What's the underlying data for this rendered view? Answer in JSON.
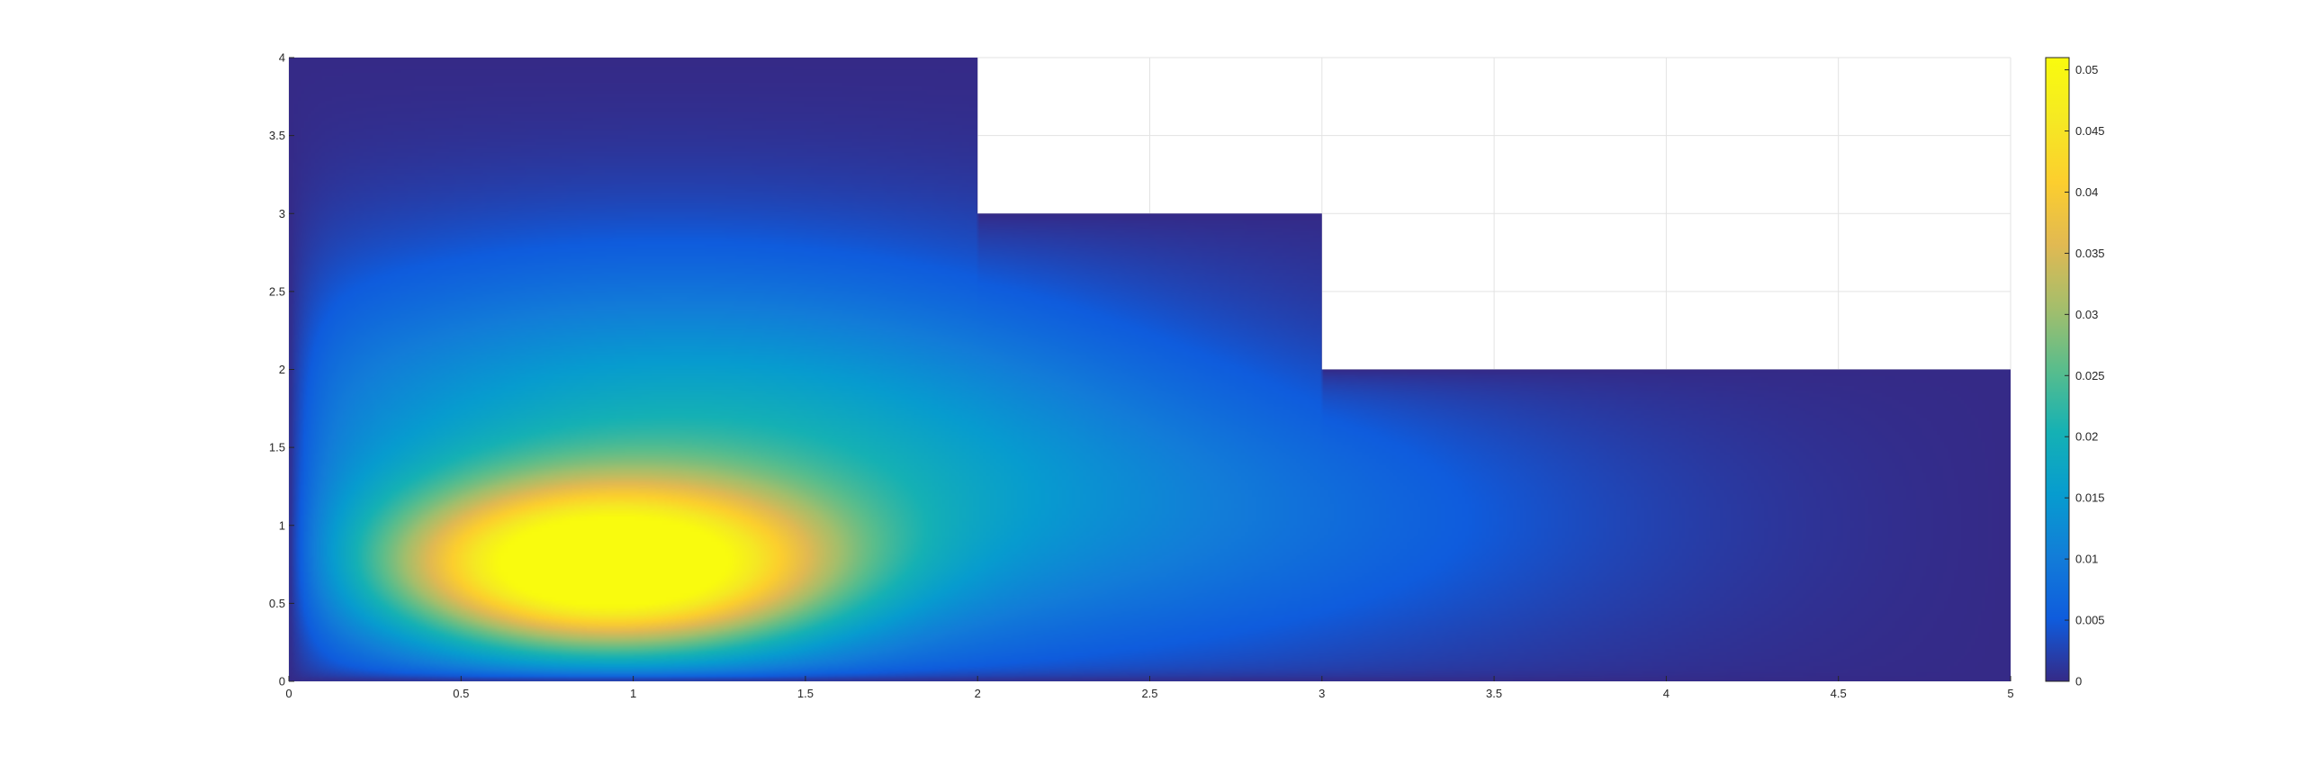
{
  "chart_data": {
    "type": "heatmap",
    "title": "",
    "xlabel": "",
    "ylabel": "",
    "xlim": [
      0,
      5
    ],
    "ylim": [
      0,
      4
    ],
    "grid": true,
    "colormap": "parula",
    "x_ticks": [
      "0",
      "0.5",
      "1",
      "1.5",
      "2",
      "2.5",
      "3",
      "3.5",
      "4",
      "4.5",
      "5"
    ],
    "y_ticks": [
      "0",
      "0.5",
      "1",
      "1.5",
      "2",
      "2.5",
      "3",
      "3.5",
      "4"
    ],
    "domain_regions": [
      {
        "x": [
          0,
          2
        ],
        "y": [
          0,
          4
        ]
      },
      {
        "x": [
          2,
          3
        ],
        "y": [
          0,
          3
        ]
      },
      {
        "x": [
          3,
          5
        ],
        "y": [
          0,
          2
        ]
      }
    ],
    "peak": {
      "x": 0.92,
      "y": 0.72,
      "value": 0.051
    },
    "colorbar": {
      "min": 0,
      "max": 0.051,
      "ticks": [
        "0",
        "0.005",
        "0.01",
        "0.015",
        "0.02",
        "0.025",
        "0.03",
        "0.035",
        "0.04",
        "0.045",
        "0.05"
      ]
    }
  }
}
